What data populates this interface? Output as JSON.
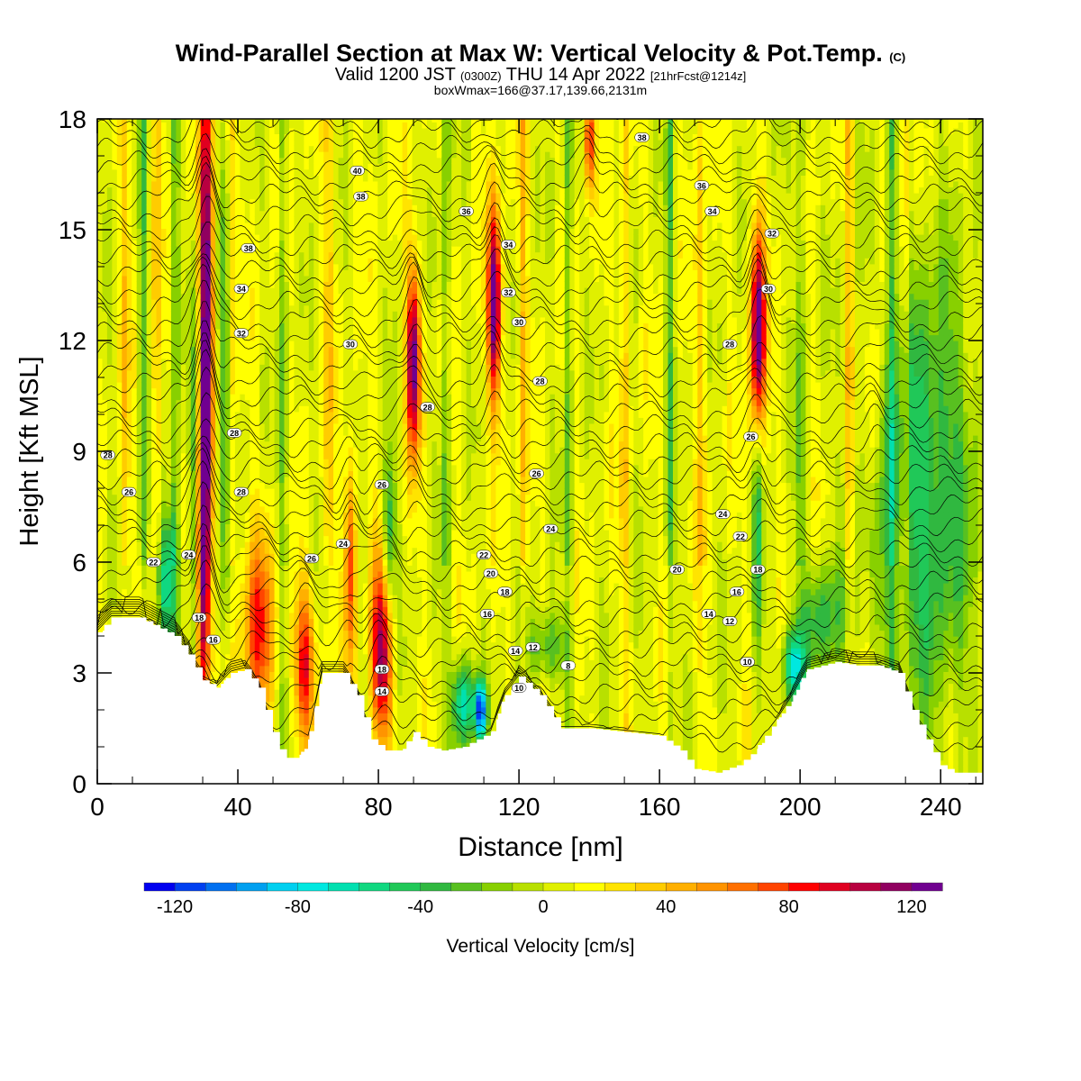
{
  "header": {
    "title_main": "Wind-Parallel Section at Max W: Vertical Velocity & Pot.Temp.",
    "title_mark": "(C)",
    "subtitle_a": "Valid 1200 JST",
    "subtitle_b": "(0300Z)",
    "subtitle_c": "THU 14 Apr 2022",
    "subtitle_d": "[21hrFcst@1214z]",
    "subtitle2": "boxWmax=166@37.17,139.66,2131m"
  },
  "chart_data": {
    "type": "heatmap",
    "title": "Wind-Parallel Section at Max W: Vertical Velocity & Pot.Temp.",
    "xlabel": "Distance [nm]",
    "ylabel": "Height [Kft MSL]",
    "xlim": [
      0,
      252
    ],
    "ylim": [
      0,
      18
    ],
    "x_ticks": [
      0,
      40,
      80,
      120,
      160,
      200,
      240
    ],
    "y_ticks": [
      0,
      3,
      6,
      9,
      12,
      15,
      18
    ],
    "colorbar": {
      "label": "Vertical Velocity [cm/s]",
      "ticks": [
        -120,
        -80,
        -40,
        0,
        40,
        80,
        120
      ],
      "min": -130,
      "step": 10,
      "colors": [
        "#0000f0",
        "#0040f0",
        "#0070f0",
        "#00a0f0",
        "#00d0f0",
        "#00e8e0",
        "#00e0b0",
        "#10d880",
        "#20c858",
        "#30b840",
        "#58c020",
        "#88d000",
        "#b8e000",
        "#e0f000",
        "#ffff00",
        "#ffe400",
        "#ffcc00",
        "#ffb000",
        "#ff9400",
        "#ff7000",
        "#ff4400",
        "#ff0000",
        "#e00020",
        "#b80040",
        "#900060",
        "#700090"
      ]
    },
    "updrafts": [
      {
        "x": 30,
        "y": 6.2,
        "peak": 125,
        "width": 2.2,
        "height": 5
      },
      {
        "x": 31,
        "y": 14,
        "peak": 115,
        "width": 2,
        "height": 6
      },
      {
        "x": 46,
        "y": 4.2,
        "peak": 70,
        "width": 4.5,
        "height": 2.5
      },
      {
        "x": 59,
        "y": 3.3,
        "peak": 80,
        "width": 3,
        "height": 2
      },
      {
        "x": 72,
        "y": 6,
        "peak": 70,
        "width": 1.6,
        "height": 3
      },
      {
        "x": 81,
        "y": 3.6,
        "peak": 110,
        "width": 3,
        "height": 2.5
      },
      {
        "x": 90,
        "y": 11.5,
        "peak": 120,
        "width": 2,
        "height": 2.5
      },
      {
        "x": 113,
        "y": 13,
        "peak": 125,
        "width": 2,
        "height": 2.6
      },
      {
        "x": 140,
        "y": 17.5,
        "peak": 80,
        "width": 1.5,
        "height": 1.5
      },
      {
        "x": 188,
        "y": 12.2,
        "peak": 140,
        "width": 2,
        "height": 2.8
      },
      {
        "x": 221,
        "y": 10,
        "peak": 40,
        "width": 2,
        "height": 3
      }
    ],
    "downdrafts": [
      {
        "x": 20,
        "y": 5.5,
        "peak": -70,
        "width": 3,
        "height": 2
      },
      {
        "x": 28,
        "y": 8,
        "peak": -55,
        "width": 1.8,
        "height": 5
      },
      {
        "x": 36,
        "y": 10,
        "peak": -45,
        "width": 2,
        "height": 6
      },
      {
        "x": 83,
        "y": 6.5,
        "peak": -60,
        "width": 1.8,
        "height": 2.5
      },
      {
        "x": 104,
        "y": 2.2,
        "peak": -80,
        "width": 3,
        "height": 1.2
      },
      {
        "x": 109,
        "y": 2,
        "peak": -120,
        "width": 1.8,
        "height": 0.8
      },
      {
        "x": 128,
        "y": 3.7,
        "peak": -40,
        "width": 6,
        "height": 1
      },
      {
        "x": 188,
        "y": 7,
        "peak": -45,
        "width": 1.5,
        "height": 4
      },
      {
        "x": 198,
        "y": 3.2,
        "peak": -80,
        "width": 3,
        "height": 1
      },
      {
        "x": 206,
        "y": 4.5,
        "peak": -45,
        "width": 6,
        "height": 1.5
      },
      {
        "x": 235,
        "y": 8,
        "peak": -55,
        "width": 15,
        "height": 6
      }
    ],
    "terrain": [
      [
        0,
        4.1
      ],
      [
        4,
        4.5
      ],
      [
        12,
        4.5
      ],
      [
        18,
        4.2
      ],
      [
        22,
        4.0
      ],
      [
        26,
        3.5
      ],
      [
        30,
        2.8
      ],
      [
        34,
        2.6
      ],
      [
        38,
        3.0
      ],
      [
        42,
        3.1
      ],
      [
        46,
        2.6
      ],
      [
        50,
        1.4
      ],
      [
        53,
        0.7
      ],
      [
        57,
        0.7
      ],
      [
        60,
        1.2
      ],
      [
        64,
        3.0
      ],
      [
        70,
        3.0
      ],
      [
        74,
        2.4
      ],
      [
        78,
        1.2
      ],
      [
        82,
        0.9
      ],
      [
        86,
        0.9
      ],
      [
        90,
        1.4
      ],
      [
        94,
        1.0
      ],
      [
        98,
        0.9
      ],
      [
        104,
        1.0
      ],
      [
        108,
        1.2
      ],
      [
        112,
        1.4
      ],
      [
        116,
        2.4
      ],
      [
        120,
        2.9
      ],
      [
        126,
        2.4
      ],
      [
        132,
        1.5
      ],
      [
        140,
        1.5
      ],
      [
        150,
        1.4
      ],
      [
        160,
        1.3
      ],
      [
        166,
        0.9
      ],
      [
        170,
        0.4
      ],
      [
        176,
        0.3
      ],
      [
        182,
        0.5
      ],
      [
        186,
        0.8
      ],
      [
        190,
        1.3
      ],
      [
        194,
        1.8
      ],
      [
        198,
        2.4
      ],
      [
        202,
        3.1
      ],
      [
        210,
        3.3
      ],
      [
        216,
        3.2
      ],
      [
        222,
        3.2
      ],
      [
        228,
        3.0
      ],
      [
        232,
        2.0
      ],
      [
        236,
        1.2
      ],
      [
        240,
        0.5
      ],
      [
        244,
        0.3
      ],
      [
        248,
        0.3
      ],
      [
        252,
        0.3
      ]
    ],
    "theta_contours": {
      "levels": [
        8,
        10,
        12,
        14,
        16,
        18,
        20,
        22,
        24,
        26,
        28,
        30,
        32,
        34,
        36,
        38,
        40
      ],
      "labels": [
        {
          "x": 3,
          "y": 8.9,
          "text": "28"
        },
        {
          "x": 9,
          "y": 7.9,
          "text": "26"
        },
        {
          "x": 16,
          "y": 6,
          "text": "22"
        },
        {
          "x": 26,
          "y": 6.2,
          "text": "24"
        },
        {
          "x": 29,
          "y": 4.5,
          "text": "18"
        },
        {
          "x": 33,
          "y": 3.9,
          "text": "16"
        },
        {
          "x": 39,
          "y": 9.5,
          "text": "28"
        },
        {
          "x": 41,
          "y": 7.9,
          "text": "28"
        },
        {
          "x": 43,
          "y": 14.5,
          "text": "38"
        },
        {
          "x": 41,
          "y": 13.4,
          "text": "34"
        },
        {
          "x": 41,
          "y": 12.2,
          "text": "32"
        },
        {
          "x": 61,
          "y": 6.1,
          "text": "26"
        },
        {
          "x": 70,
          "y": 6.5,
          "text": "24"
        },
        {
          "x": 72,
          "y": 11.9,
          "text": "30"
        },
        {
          "x": 74,
          "y": 16.6,
          "text": "40"
        },
        {
          "x": 75,
          "y": 15.9,
          "text": "38"
        },
        {
          "x": 81,
          "y": 3.1,
          "text": "18"
        },
        {
          "x": 81,
          "y": 2.5,
          "text": "14"
        },
        {
          "x": 81,
          "y": 8.1,
          "text": "26"
        },
        {
          "x": 94,
          "y": 10.2,
          "text": "28"
        },
        {
          "x": 105,
          "y": 15.5,
          "text": "36"
        },
        {
          "x": 110,
          "y": 6.2,
          "text": "22"
        },
        {
          "x": 112,
          "y": 5.7,
          "text": "20"
        },
        {
          "x": 111,
          "y": 4.6,
          "text": "16"
        },
        {
          "x": 116,
          "y": 5.2,
          "text": "18"
        },
        {
          "x": 117,
          "y": 14.6,
          "text": "34"
        },
        {
          "x": 117,
          "y": 13.3,
          "text": "32"
        },
        {
          "x": 120,
          "y": 12.5,
          "text": "30"
        },
        {
          "x": 119,
          "y": 3.6,
          "text": "14"
        },
        {
          "x": 120,
          "y": 2.6,
          "text": "10"
        },
        {
          "x": 124,
          "y": 3.7,
          "text": "12"
        },
        {
          "x": 125,
          "y": 8.4,
          "text": "26"
        },
        {
          "x": 126,
          "y": 10.9,
          "text": "28"
        },
        {
          "x": 129,
          "y": 6.9,
          "text": "24"
        },
        {
          "x": 134,
          "y": 3.2,
          "text": "8"
        },
        {
          "x": 155,
          "y": 17.5,
          "text": "38"
        },
        {
          "x": 165,
          "y": 5.8,
          "text": "20"
        },
        {
          "x": 172,
          "y": 16.2,
          "text": "36"
        },
        {
          "x": 174,
          "y": 4.6,
          "text": "14"
        },
        {
          "x": 175,
          "y": 15.5,
          "text": "34"
        },
        {
          "x": 178,
          "y": 7.3,
          "text": "24"
        },
        {
          "x": 180,
          "y": 11.9,
          "text": "28"
        },
        {
          "x": 180,
          "y": 4.4,
          "text": "12"
        },
        {
          "x": 182,
          "y": 5.2,
          "text": "16"
        },
        {
          "x": 183,
          "y": 6.7,
          "text": "22"
        },
        {
          "x": 185,
          "y": 3.3,
          "text": "10"
        },
        {
          "x": 186,
          "y": 9.4,
          "text": "26"
        },
        {
          "x": 188,
          "y": 5.8,
          "text": "18"
        },
        {
          "x": 191,
          "y": 13.4,
          "text": "30"
        },
        {
          "x": 192,
          "y": 14.9,
          "text": "32"
        }
      ]
    }
  }
}
